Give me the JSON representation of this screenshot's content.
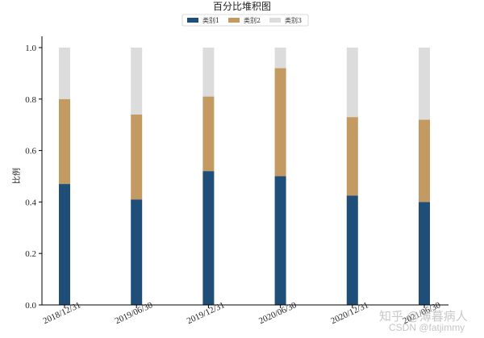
{
  "chart_data": {
    "type": "bar",
    "stacked": true,
    "title": "百分比堆积图",
    "ylabel": "比例",
    "xlabel": "",
    "ylim": [
      0,
      1.0
    ],
    "yticks": [
      "0.0",
      "0.2",
      "0.4",
      "0.6",
      "0.8",
      "1.0"
    ],
    "categories": [
      "2018/12/31",
      "2019/06/30",
      "2019/12/31",
      "2020/06/30",
      "2020/12/31",
      "2021/06/30"
    ],
    "series": [
      {
        "name": "类别1",
        "color": "#1f4e79",
        "values": [
          0.47,
          0.41,
          0.52,
          0.5,
          0.425,
          0.4
        ]
      },
      {
        "name": "类别2",
        "color": "#c49a63",
        "values": [
          0.33,
          0.33,
          0.29,
          0.42,
          0.305,
          0.32
        ]
      },
      {
        "name": "类别3",
        "color": "#dcdcdc",
        "values": [
          0.2,
          0.26,
          0.19,
          0.08,
          0.27,
          0.28
        ]
      }
    ],
    "legend_position": "top-center",
    "grid": false
  },
  "watermark": {
    "zhihu": "知乎 @薄暮病人",
    "csdn": "CSDN @fatjimmy"
  }
}
